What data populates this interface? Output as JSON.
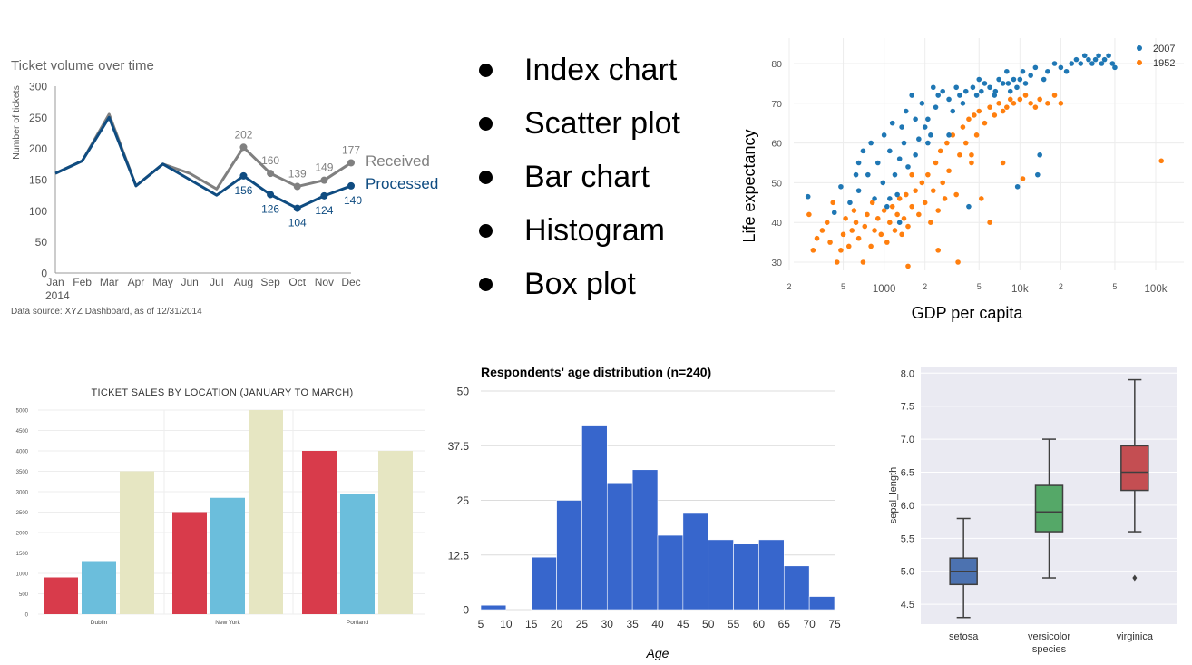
{
  "bullets": [
    "Index chart",
    "Scatter plot",
    "Bar chart",
    "Histogram",
    "Box plot"
  ],
  "colors": {
    "received": "#808080",
    "processed": "#0f4c81",
    "scatter_2007": "#1f77b4",
    "scatter_1952": "#ff7f0e",
    "bar_jan": "#d83b4b",
    "bar_feb": "#6bbedc",
    "bar_mar": "#e6e6c2",
    "hist": "#3766cc",
    "box_setosa": "#4c72b0",
    "box_versicolor": "#55a868",
    "box_virginica": "#c44e52"
  },
  "chart_data": [
    {
      "type": "line",
      "title": "Ticket volume over time",
      "ylabel": "Number of tickets",
      "xlabel": "",
      "categories": [
        "Jan",
        "Feb",
        "Mar",
        "Apr",
        "May",
        "Jun",
        "Jul",
        "Aug",
        "Sep",
        "Oct",
        "Nov",
        "Dec"
      ],
      "x_sublabel": "2014",
      "ylim": [
        0,
        300
      ],
      "yticks": [
        0,
        50,
        100,
        150,
        200,
        250,
        300
      ],
      "series": [
        {
          "name": "Received",
          "values": [
            160,
            180,
            255,
            140,
            175,
            160,
            135,
            202,
            160,
            139,
            149,
            177
          ],
          "labeled_from": 7
        },
        {
          "name": "Processed",
          "values": [
            160,
            180,
            250,
            140,
            175,
            150,
            125,
            156,
            126,
            104,
            124,
            140
          ],
          "labeled_from": 7
        }
      ],
      "footnote": "Data source: XYZ Dashboard, as of 12/31/2014"
    },
    {
      "type": "scatter",
      "xlabel": "GDP per capita",
      "ylabel": "Life expectancy",
      "x_scale": "log",
      "xlim": [
        200,
        150000
      ],
      "ylim": [
        26,
        84
      ],
      "yticks": [
        30,
        40,
        50,
        60,
        70,
        80
      ],
      "xticks": [
        {
          "v": 200,
          "label": "2",
          "minor": true
        },
        {
          "v": 500,
          "label": "5",
          "minor": true
        },
        {
          "v": 1000,
          "label": "1000",
          "minor": false
        },
        {
          "v": 2000,
          "label": "2",
          "minor": true
        },
        {
          "v": 5000,
          "label": "5",
          "minor": true
        },
        {
          "v": 10000,
          "label": "10k",
          "minor": false
        },
        {
          "v": 20000,
          "label": "2",
          "minor": true
        },
        {
          "v": 50000,
          "label": "5",
          "minor": true
        },
        {
          "v": 100000,
          "label": "100k",
          "minor": false
        }
      ],
      "legend_position": "top-right",
      "series": [
        {
          "name": "2007",
          "points": [
            [
              275,
              46.5
            ],
            [
              430,
              42.5
            ],
            [
              480,
              49
            ],
            [
              560,
              45
            ],
            [
              620,
              52
            ],
            [
              650,
              55
            ],
            [
              700,
              58
            ],
            [
              760,
              52
            ],
            [
              800,
              60
            ],
            [
              850,
              46
            ],
            [
              900,
              55
            ],
            [
              980,
              50
            ],
            [
              1000,
              62
            ],
            [
              1050,
              44
            ],
            [
              1100,
              58
            ],
            [
              1150,
              65
            ],
            [
              1200,
              52
            ],
            [
              1250,
              47
            ],
            [
              1300,
              56
            ],
            [
              1350,
              64
            ],
            [
              1400,
              60
            ],
            [
              1450,
              68
            ],
            [
              1500,
              54
            ],
            [
              1600,
              72
            ],
            [
              1700,
              57
            ],
            [
              1800,
              61
            ],
            [
              1900,
              70
            ],
            [
              2000,
              64
            ],
            [
              2100,
              66
            ],
            [
              2200,
              62
            ],
            [
              2300,
              74
            ],
            [
              2400,
              69
            ],
            [
              2500,
              72
            ],
            [
              2700,
              73
            ],
            [
              3000,
              71
            ],
            [
              3200,
              68
            ],
            [
              3400,
              74
            ],
            [
              3600,
              72
            ],
            [
              3800,
              70
            ],
            [
              4000,
              73
            ],
            [
              4200,
              44
            ],
            [
              4500,
              74
            ],
            [
              4800,
              72
            ],
            [
              5000,
              76
            ],
            [
              5200,
              73
            ],
            [
              5500,
              75
            ],
            [
              6000,
              74
            ],
            [
              6500,
              72
            ],
            [
              7000,
              76
            ],
            [
              7500,
              75
            ],
            [
              8000,
              78
            ],
            [
              8500,
              73
            ],
            [
              9000,
              76
            ],
            [
              9500,
              74
            ],
            [
              10000,
              76
            ],
            [
              10500,
              78
            ],
            [
              11000,
              75
            ],
            [
              12000,
              77
            ],
            [
              13000,
              79
            ],
            [
              13500,
              52
            ],
            [
              14000,
              57
            ],
            [
              15000,
              76
            ],
            [
              16000,
              78
            ],
            [
              18000,
              80
            ],
            [
              20000,
              79
            ],
            [
              22000,
              78
            ],
            [
              24000,
              80
            ],
            [
              26000,
              81
            ],
            [
              28000,
              80
            ],
            [
              30000,
              82
            ],
            [
              32000,
              81
            ],
            [
              34000,
              80
            ],
            [
              36000,
              81
            ],
            [
              38000,
              82
            ],
            [
              40000,
              80
            ],
            [
              42000,
              81
            ],
            [
              45000,
              82
            ],
            [
              48000,
              80
            ],
            [
              50000,
              79
            ],
            [
              9600,
              49
            ],
            [
              6600,
              73
            ],
            [
              8200,
              75
            ],
            [
              3000,
              62
            ],
            [
              1300,
              40
            ],
            [
              2100,
              60
            ],
            [
              1700,
              66
            ],
            [
              1100,
              46
            ],
            [
              650,
              48
            ]
          ]
        },
        {
          "name": "1952",
          "points": [
            [
              280,
              42
            ],
            [
              300,
              33
            ],
            [
              320,
              36
            ],
            [
              350,
              38
            ],
            [
              380,
              40
            ],
            [
              400,
              35
            ],
            [
              420,
              45
            ],
            [
              450,
              30
            ],
            [
              480,
              33
            ],
            [
              500,
              37
            ],
            [
              520,
              41
            ],
            [
              550,
              34
            ],
            [
              580,
              38
            ],
            [
              600,
              43
            ],
            [
              620,
              40
            ],
            [
              650,
              36
            ],
            [
              700,
              30
            ],
            [
              720,
              39
            ],
            [
              750,
              42
            ],
            [
              800,
              34
            ],
            [
              820,
              45
            ],
            [
              850,
              38
            ],
            [
              900,
              41
            ],
            [
              950,
              37
            ],
            [
              1000,
              43
            ],
            [
              1050,
              35
            ],
            [
              1100,
              40
            ],
            [
              1150,
              44
            ],
            [
              1200,
              38
            ],
            [
              1250,
              42
            ],
            [
              1300,
              46
            ],
            [
              1350,
              37
            ],
            [
              1400,
              41
            ],
            [
              1450,
              47
            ],
            [
              1500,
              39
            ],
            [
              1600,
              44
            ],
            [
              1700,
              48
            ],
            [
              1800,
              42
            ],
            [
              1900,
              50
            ],
            [
              2000,
              45
            ],
            [
              2100,
              52
            ],
            [
              2200,
              40
            ],
            [
              2300,
              48
            ],
            [
              2400,
              55
            ],
            [
              2500,
              43
            ],
            [
              2600,
              58
            ],
            [
              2700,
              50
            ],
            [
              2800,
              46
            ],
            [
              2900,
              60
            ],
            [
              3000,
              53
            ],
            [
              3200,
              62
            ],
            [
              3400,
              47
            ],
            [
              3600,
              57
            ],
            [
              3800,
              64
            ],
            [
              4000,
              60
            ],
            [
              4200,
              66
            ],
            [
              4400,
              55
            ],
            [
              4600,
              67
            ],
            [
              4800,
              62
            ],
            [
              5000,
              68
            ],
            [
              5500,
              65
            ],
            [
              6000,
              69
            ],
            [
              6500,
              67
            ],
            [
              7000,
              70
            ],
            [
              7500,
              68
            ],
            [
              8000,
              69
            ],
            [
              8500,
              71
            ],
            [
              9000,
              70
            ],
            [
              10000,
              71
            ],
            [
              11000,
              72
            ],
            [
              12000,
              70
            ],
            [
              13000,
              69
            ],
            [
              14000,
              71
            ],
            [
              16000,
              70
            ],
            [
              18000,
              72
            ],
            [
              20000,
              70
            ],
            [
              3500,
              30
            ],
            [
              6000,
              40
            ],
            [
              7500,
              55
            ],
            [
              10500,
              51
            ],
            [
              110000,
              55.5
            ],
            [
              1500,
              29
            ],
            [
              5200,
              46
            ],
            [
              1600,
              52
            ],
            [
              2500,
              33
            ],
            [
              4400,
              57
            ]
          ]
        }
      ]
    },
    {
      "type": "bar",
      "title": "TICKET SALES BY LOCATION (JANUARY TO MARCH)",
      "categories": [
        "Dublin",
        "New York",
        "Portland"
      ],
      "ylim": [
        0,
        5000
      ],
      "yticks": [
        0,
        500,
        1000,
        1500,
        2000,
        2500,
        3000,
        3500,
        4000,
        4500,
        5000
      ],
      "series": [
        {
          "values": [
            900,
            2500,
            4000
          ]
        },
        {
          "values": [
            1300,
            2850,
            2950
          ]
        },
        {
          "values": [
            3500,
            5000,
            4000
          ]
        }
      ]
    },
    {
      "type": "bar",
      "subtype": "histogram",
      "title": "Respondents' age distribution (n=240)",
      "xlabel": "Age",
      "ylabel": "",
      "bin_edges": [
        5,
        10,
        15,
        20,
        25,
        30,
        35,
        40,
        45,
        50,
        55,
        60,
        65,
        70,
        75
      ],
      "counts": [
        1,
        0,
        12,
        25,
        42,
        29,
        32,
        17,
        22,
        16,
        15,
        16,
        10,
        3
      ],
      "ylim": [
        0,
        50
      ],
      "yticks": [
        "0",
        "12.5",
        "25",
        "37.5",
        "50"
      ],
      "xticks": [
        5,
        10,
        15,
        20,
        25,
        30,
        35,
        40,
        45,
        50,
        55,
        60,
        65,
        70,
        75
      ]
    },
    {
      "type": "box",
      "xlabel": "species",
      "ylabel": "sepal_length",
      "ylim": [
        4.2,
        8.1
      ],
      "yticks": [
        "4.5",
        "5.0",
        "5.5",
        "6.0",
        "6.5",
        "7.0",
        "7.5",
        "8.0"
      ],
      "categories": [
        "setosa",
        "versicolor",
        "virginica"
      ],
      "boxes": [
        {
          "min": 4.3,
          "q1": 4.8,
          "median": 5.0,
          "q3": 5.2,
          "max": 5.8,
          "outliers": []
        },
        {
          "min": 4.9,
          "q1": 5.6,
          "median": 5.9,
          "q3": 6.3,
          "max": 7.0,
          "outliers": []
        },
        {
          "min": 5.6,
          "q1": 6.225,
          "median": 6.5,
          "q3": 6.9,
          "max": 7.9,
          "outliers": [
            4.9
          ]
        }
      ]
    }
  ]
}
